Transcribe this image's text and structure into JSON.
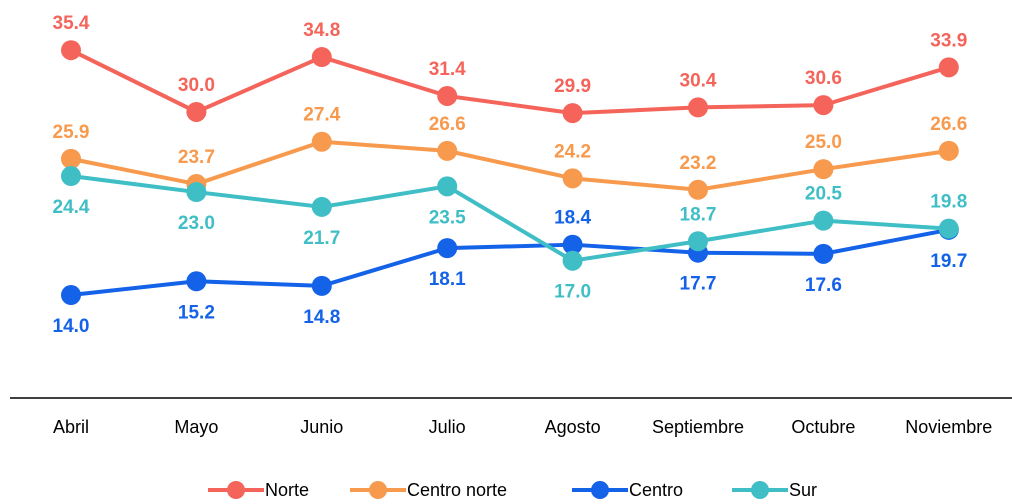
{
  "chart_data": {
    "type": "line",
    "categories": [
      "Abril",
      "Mayo",
      "Junio",
      "Julio",
      "Agosto",
      "Septiembre",
      "Octubre",
      "Noviembre"
    ],
    "ylim": [
      5,
      39
    ],
    "series": [
      {
        "name": "Norte",
        "color": "#f4645a",
        "values": [
          35.4,
          30.0,
          34.8,
          31.4,
          29.9,
          30.4,
          30.6,
          33.9
        ],
        "value_labels": [
          "35.4",
          "30.0",
          "34.8",
          "31.4",
          "29.9",
          "30.4",
          "30.6",
          "33.9"
        ]
      },
      {
        "name": "Centro norte",
        "color": "#f79a4e",
        "values": [
          25.9,
          23.7,
          27.4,
          26.6,
          24.2,
          23.2,
          25.0,
          26.6
        ],
        "value_labels": [
          "25.9",
          "23.7",
          "27.4",
          "26.6",
          "24.2",
          "23.2",
          "25.0",
          "26.6"
        ]
      },
      {
        "name": "Centro",
        "color": "#1462e8",
        "values": [
          14.0,
          15.2,
          14.8,
          18.1,
          18.4,
          17.7,
          17.6,
          19.7
        ],
        "value_labels": [
          "14.0",
          "15.2",
          "14.8",
          "18.1",
          "18.4",
          "17.7",
          "17.6",
          "19.7"
        ]
      },
      {
        "name": "Sur",
        "color": "#3fbec6",
        "values": [
          24.4,
          23.0,
          21.7,
          23.5,
          17.0,
          18.7,
          20.5,
          19.8
        ],
        "value_labels": [
          "24.4",
          "23.0",
          "21.7",
          "23.5",
          "17.0",
          "18.7",
          "20.5",
          "19.8"
        ]
      }
    ]
  }
}
